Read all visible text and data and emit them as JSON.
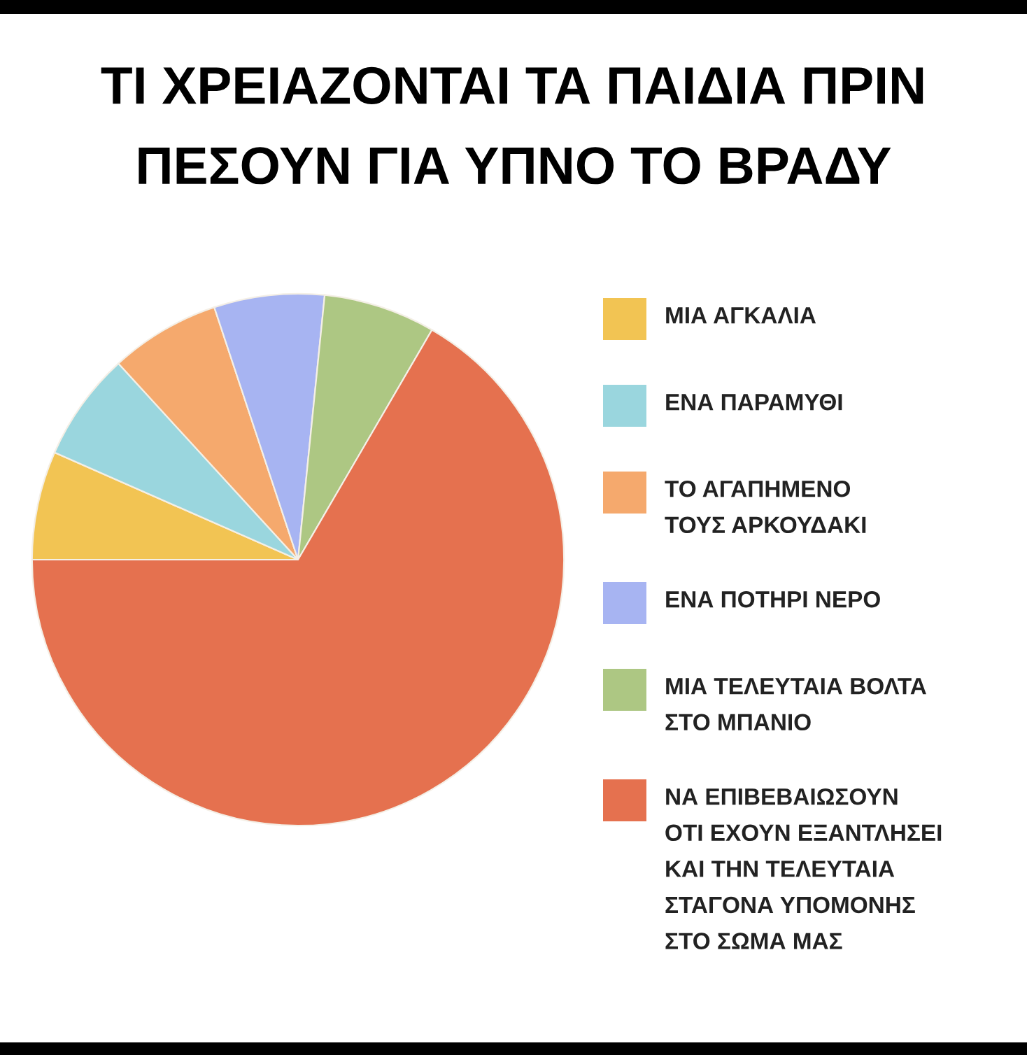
{
  "chart_data": {
    "type": "pie",
    "title": "ΤΙ ΧΡΕΙΑΖΟΝΤΑΙ ΤΑ ΠΑΙΔΙΑ ΠΡΙΝ\nΠΕΣΟΥΝ ΓΙΑ ΥΠΝΟ ΤΟ ΒΡΑΔΥ",
    "categories": [
      "ΜΙΑ ΑΓΚΑΛΙΑ",
      "ΕΝΑ ΠΑΡΑΜΥΘΙ",
      "ΤΟ ΑΓΑΠΗΜΕΝΟ\nΤΟΥΣ ΑΡΚΟΥΔΑΚΙ",
      "ΕΝΑ ΠΟΤΗΡΙ ΝΕΡΟ",
      "ΜΙΑ ΤΕΛΕΥΤΑΙΑ ΒΟΛΤΑ\nΣΤΟ ΜΠΑΝΙΟ",
      "ΝΑ ΕΠΙΒΕΒΑΙΩΣΟΥΝ\nΟΤΙ ΕΧΟΥΝ ΕΞΑΝΤΛΗΣΕΙ\nΚΑΙ ΤΗΝ ΤΕΛΕΥΤΑΙΑ\nΣΤΑΓΟΝΑ ΥΠΟΜΟΝΗΣ\nΣΤΟ ΣΩΜΑ ΜΑΣ"
    ],
    "values": [
      6.6,
      6.6,
      6.7,
      6.7,
      6.8,
      66.6
    ],
    "colors": [
      "#f2c453",
      "#9ad6de",
      "#f5a96d",
      "#a7b4f2",
      "#adc783",
      "#e5714f"
    ],
    "legend": "right"
  }
}
